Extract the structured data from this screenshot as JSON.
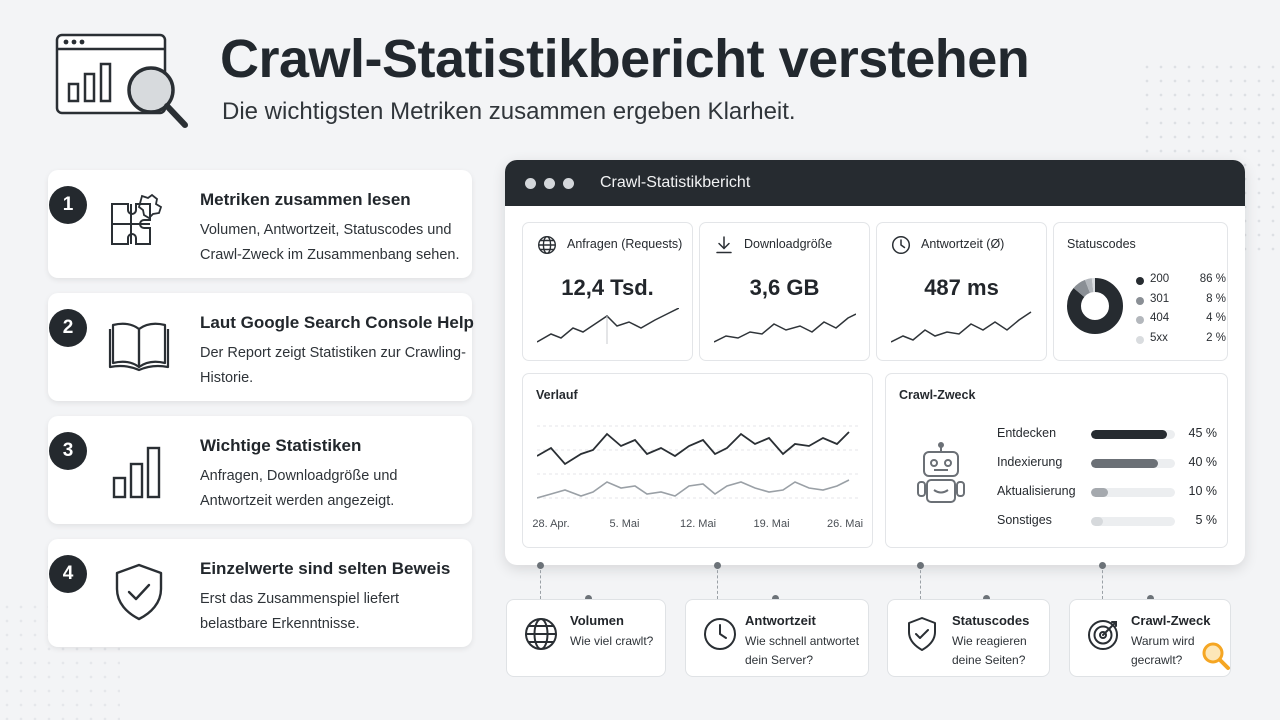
{
  "header": {
    "title": "Crawl-Statistikbericht verstehen",
    "subtitle": "Die wichtigsten Metriken zusammen ergeben Klarheit.",
    "icon": "browser-chart-magnifier-icon"
  },
  "steps": [
    {
      "number": "1",
      "title": "Metriken zusammen lesen",
      "text": "Volumen, Antwortzeit, Statuscodes und Crawl-Zweck im Zusammenbang sehen.",
      "icon": "puzzle-icon"
    },
    {
      "number": "2",
      "title": "Laut Google Search Console Help",
      "text": "Der Report zeigt Statistiken zur Crawling-Historie.",
      "icon": "open-book-icon"
    },
    {
      "number": "3",
      "title": "Wichtige Statistiken",
      "text": "Anfragen, Downloadgröße und Antwortzeit werden angezeigt.",
      "icon": "bar-chart-icon"
    },
    {
      "number": "4",
      "title": "Einzelwerte sind selten Beweis",
      "text": "Erst das Zusammenspiel liefert belastbare Erkenntnisse.",
      "icon": "shield-check-icon"
    }
  ],
  "dashboard": {
    "window_title": "Crawl-Statistikbericht",
    "metrics": [
      {
        "label": "Anfragen (Requests)",
        "value": "12,4 Tsd.",
        "icon": "globe-icon"
      },
      {
        "label": "Downloadgröße",
        "value": "3,6 GB",
        "icon": "download-icon"
      },
      {
        "label": "Antwortzeit (Ø)",
        "value": "487 ms",
        "icon": "clock-icon"
      }
    ],
    "status": {
      "label": "Statuscodes",
      "items": [
        {
          "name": "200",
          "value": "86 %",
          "share": 86,
          "color": "#262b30"
        },
        {
          "name": "301",
          "value": "8 %",
          "share": 8,
          "color": "#8a8f95"
        },
        {
          "name": "404",
          "value": "4 %",
          "share": 4,
          "color": "#b3b7bc"
        },
        {
          "name": "5xx",
          "value": "2 %",
          "share": 2,
          "color": "#d9dcdf"
        }
      ]
    },
    "history": {
      "label": "Verlauf",
      "ticks": [
        "28. Apr.",
        "5. Mai",
        "12. Mai",
        "19. Mai",
        "26. Mai"
      ]
    },
    "purpose": {
      "label": "Crawl-Zweck",
      "icon": "robot-icon",
      "items": [
        {
          "name": "Entdecken",
          "value": "45 %",
          "share": 45,
          "color": "#262b30"
        },
        {
          "name": "Indexierung",
          "value": "40 %",
          "share": 40,
          "color": "#6b7076"
        },
        {
          "name": "Aktualisierung",
          "value": "10 %",
          "share": 10,
          "color": "#a5a9ae"
        },
        {
          "name": "Sonstiges",
          "value": "5 %",
          "share": 5,
          "color": "#d6d9dc"
        }
      ]
    }
  },
  "bottom_cards": [
    {
      "title": "Volumen",
      "text": "Wie viel crawlt?",
      "icon": "globe-icon"
    },
    {
      "title": "Antwortzeit",
      "text": "Wie schnell antwortet dein Server?",
      "icon": "clock-icon"
    },
    {
      "title": "Statuscodes",
      "text": "Wie reagieren deine Seiten?",
      "icon": "shield-check-icon"
    },
    {
      "title": "Crawl-Zweck",
      "text": "Warum wird gecrawlt?",
      "icon": "target-icon"
    }
  ],
  "colors": {
    "dark": "#262b30",
    "accent": "#f5a623"
  }
}
